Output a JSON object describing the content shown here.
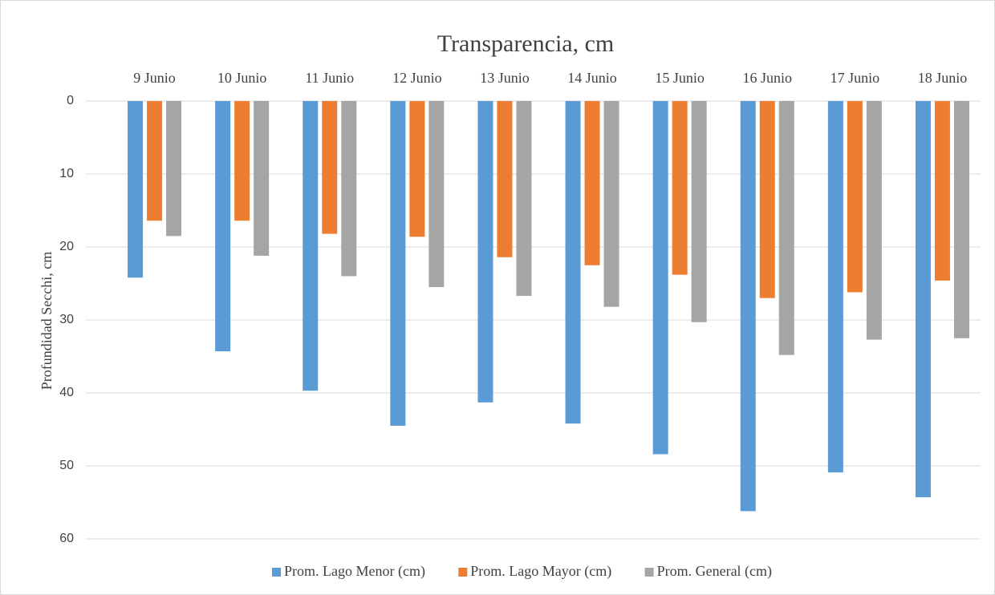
{
  "chart_data": {
    "type": "bar",
    "title": "Transparencia, cm",
    "y_label": "Profundidad Secchi, cm",
    "categories": [
      "9 Junio",
      "10 Junio",
      "11 Junio",
      "12 Junio",
      "13 Junio",
      "14 Junio",
      "15 Junio",
      "16 Junio",
      "17 Junio",
      "18 Junio"
    ],
    "series": [
      {
        "name": "Prom. Lago Menor (cm)",
        "color": "#5b9bd5",
        "values": [
          24.2,
          34.3,
          39.7,
          44.5,
          41.3,
          44.2,
          48.4,
          56.2,
          50.9,
          54.3
        ]
      },
      {
        "name": "Prom. Lago Mayor (cm)",
        "color": "#ed7d31",
        "values": [
          16.4,
          16.4,
          18.2,
          18.6,
          21.4,
          22.5,
          23.8,
          27.0,
          26.2,
          24.6
        ]
      },
      {
        "name": "Prom. General (cm)",
        "color": "#a5a5a5",
        "values": [
          18.5,
          21.2,
          24.0,
          25.5,
          26.7,
          28.2,
          30.3,
          34.8,
          32.7,
          32.5
        ]
      }
    ],
    "ylim": [
      0,
      60
    ],
    "yticks": [
      0,
      10,
      20,
      30,
      40,
      50,
      60
    ],
    "y_inverted": true,
    "grid": true,
    "legend": "bottom"
  }
}
